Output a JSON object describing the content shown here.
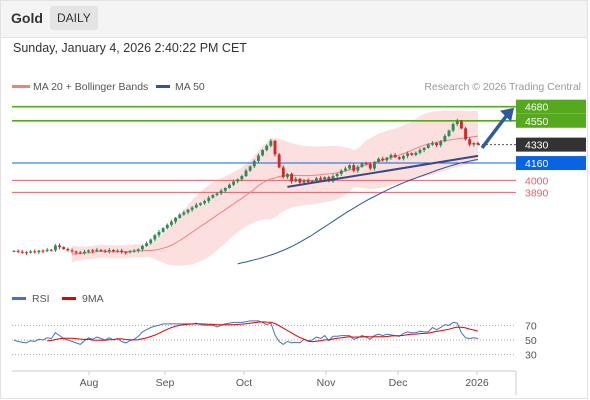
{
  "header": {
    "title": "Gold",
    "timeframe_tab": "DAILY"
  },
  "timestamp": "Sunday, January 4, 2026 2:40:22 PM CET",
  "legend": {
    "ma20": {
      "label": "MA 20 + Bollinger Bands",
      "color": "#f08080"
    },
    "ma50": {
      "label": "MA 50",
      "color": "#2f5597"
    },
    "credit": "Research © 2026 Trading Central"
  },
  "rsi_legend": {
    "rsi": {
      "label": "RSI",
      "color": "#4472c4"
    },
    "ma9": {
      "label": "9MA",
      "color": "#e60000"
    }
  },
  "colors": {
    "bull_candle": "#2e8b57",
    "bear_candle": "#d62728",
    "target": "#56a81e",
    "pivot": "#0a64e1",
    "support": "#e8606a",
    "last_price": "#333333",
    "arrow": "#2f5b9c"
  },
  "chart_data": [
    {
      "type": "candlestick",
      "title": "Gold",
      "x_labels": [
        "Aug",
        "Sep",
        "Oct",
        "Nov",
        "Dec",
        "2026"
      ],
      "ylim": [
        3100,
        4760
      ],
      "closes": [
        3350,
        3342,
        3338,
        3333,
        3345,
        3338,
        3352,
        3348,
        3360,
        3356,
        3400,
        3385,
        3368,
        3355,
        3345,
        3335,
        3328,
        3342,
        3355,
        3348,
        3360,
        3352,
        3346,
        3358,
        3345,
        3352,
        3340,
        3335,
        3345,
        3350,
        3365,
        3395,
        3420,
        3455,
        3495,
        3525,
        3560,
        3590,
        3620,
        3655,
        3685,
        3705,
        3730,
        3750,
        3775,
        3790,
        3810,
        3840,
        3865,
        3880,
        3905,
        3930,
        3960,
        3990,
        4010,
        4040,
        4090,
        4130,
        4180,
        4230,
        4280,
        4320,
        4365,
        4240,
        4120,
        4030,
        4060,
        3990,
        4015,
        3980,
        4000,
        3985,
        3995,
        4020,
        4005,
        4030,
        3990,
        4040,
        4060,
        4090,
        4110,
        4140,
        4090,
        4125,
        4160,
        4150,
        4110,
        4170,
        4200,
        4185,
        4210,
        4235,
        4215,
        4200,
        4225,
        4250,
        4235,
        4255,
        4280,
        4300,
        4330,
        4345,
        4325,
        4360,
        4410,
        4460,
        4520,
        4550,
        4480,
        4380,
        4330,
        4345,
        4330
      ],
      "ma20": [
        3320,
        3325,
        3325,
        3331,
        3333,
        3338,
        3342,
        3347,
        3345,
        3343,
        3341,
        3342,
        3342,
        3343,
        3347,
        3350,
        3350,
        3350,
        3355,
        3354,
        3358,
        3365,
        3375,
        3386,
        3402,
        3423,
        3446,
        3470,
        3496,
        3522,
        3548,
        3575,
        3600,
        3627,
        3652,
        3678,
        3705,
        3730,
        3757,
        3783,
        3809,
        3835,
        3863,
        3890,
        3920,
        3951,
        3976,
        3997,
        4015,
        4023,
        4035,
        4043,
        4046,
        4046,
        4045,
        4044,
        4044,
        4044,
        4046,
        4049,
        4052,
        4058,
        4060,
        4065,
        4070,
        4079,
        4085,
        4097,
        4107,
        4117,
        4130,
        4145,
        4155,
        4167,
        4178,
        4189,
        4200,
        4210,
        4222,
        4234,
        4247,
        4261,
        4278,
        4295,
        4311,
        4325,
        4335,
        4343,
        4352,
        4360,
        4368,
        4372,
        4378,
        4383,
        4387,
        4393,
        4398,
        4404,
        4409
      ],
      "ma50": [
        3230,
        3240,
        3248,
        3258,
        3268,
        3277,
        3288,
        3300,
        3312,
        3325,
        3340,
        3355,
        3372,
        3390,
        3410,
        3430,
        3452,
        3474,
        3497,
        3522,
        3548,
        3572,
        3598,
        3622,
        3648,
        3673,
        3698,
        3722,
        3744,
        3768,
        3790,
        3812,
        3833,
        3852,
        3872,
        3890,
        3910,
        3928,
        3945,
        3962,
        3978,
        3994,
        4008,
        4022,
        4036,
        4050,
        4064,
        4078,
        4092,
        4105,
        4118,
        4130,
        4141,
        4152,
        4162,
        4170,
        4178,
        4187,
        4193
      ],
      "rsi": [
        50,
        48,
        47,
        46,
        49,
        48,
        51,
        50,
        53,
        52,
        60,
        56,
        52,
        50,
        48,
        46,
        44,
        49,
        53,
        51,
        54,
        52,
        50,
        53,
        50,
        52,
        48,
        46,
        49,
        51,
        55,
        61,
        64,
        67,
        69,
        70,
        72,
        72,
        72,
        72,
        72,
        72,
        72,
        72,
        73,
        71,
        70,
        70,
        70,
        68,
        70,
        72,
        73,
        74,
        74,
        74,
        75,
        76,
        76,
        76,
        74,
        71,
        73,
        57,
        48,
        44,
        48,
        46,
        47,
        46,
        51,
        49,
        50,
        54,
        52,
        56,
        49,
        55,
        55,
        56,
        56,
        56,
        51,
        53,
        56,
        54,
        51,
        56,
        58,
        56,
        58,
        57,
        56,
        55,
        59,
        61,
        60,
        60,
        62,
        61,
        61,
        67,
        64,
        67,
        71,
        70,
        74,
        73,
        60,
        53,
        52,
        53,
        52
      ],
      "rsi_ylim": [
        20,
        80
      ],
      "rsi_levels": [
        70,
        50,
        30
      ],
      "rsi_ma9_note": "computed",
      "levels": [
        {
          "label": "4680",
          "value": 4680,
          "kind": "target"
        },
        {
          "label": "4550",
          "value": 4550,
          "kind": "target"
        },
        {
          "label": "4330",
          "value": 4330,
          "kind": "last"
        },
        {
          "label": "4160",
          "value": 4160,
          "kind": "pivot"
        },
        {
          "label": "4000",
          "value": 4000,
          "kind": "support"
        },
        {
          "label": "3890",
          "value": 3890,
          "kind": "support"
        }
      ]
    }
  ]
}
